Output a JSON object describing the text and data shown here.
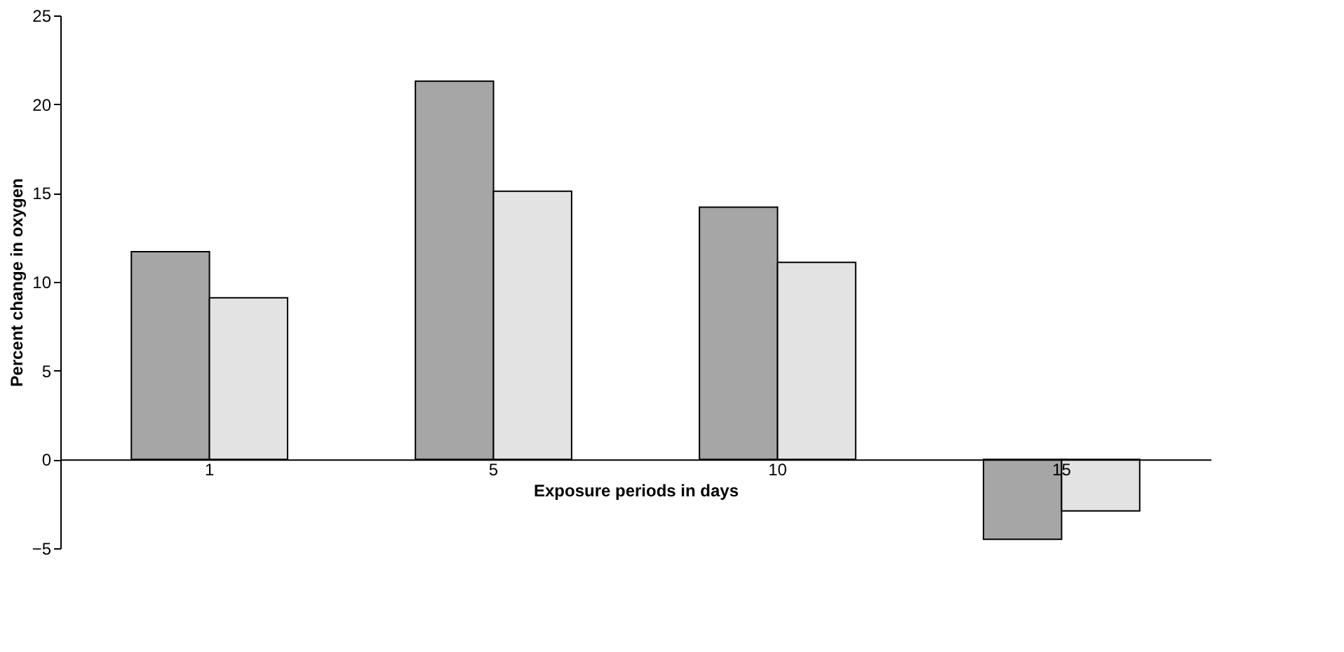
{
  "chart_data": {
    "type": "bar",
    "xlabel": "Exposure periods in days",
    "ylabel": "Percent change in oxygen",
    "categories": [
      "1",
      "5",
      "10",
      "15"
    ],
    "series": [
      {
        "color": "#a6a6a6",
        "values": [
          11.7,
          21.3,
          14.2,
          -4.5
        ]
      },
      {
        "color": "#e3e3e3",
        "values": [
          9.1,
          15.1,
          11.1,
          -2.9
        ]
      }
    ],
    "ylim": [
      -5,
      25
    ],
    "yticks": [
      -5,
      0,
      5,
      10,
      15,
      20,
      25
    ],
    "grid": false
  }
}
